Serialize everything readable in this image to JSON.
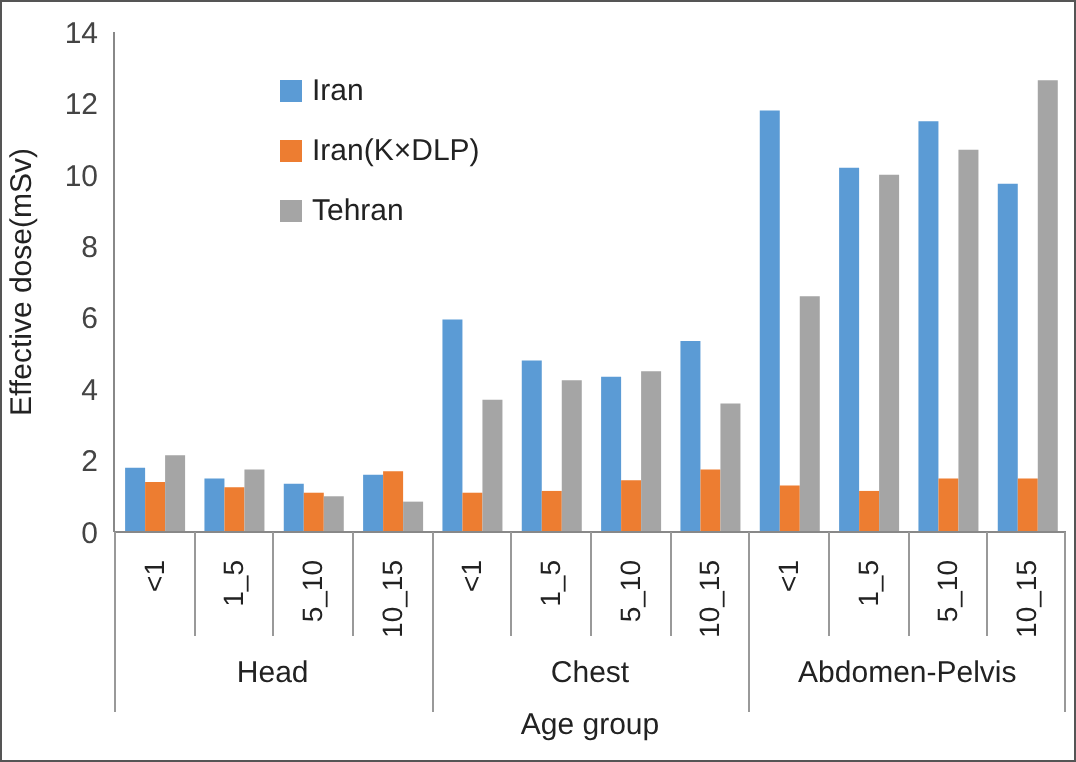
{
  "chart_data": {
    "type": "bar",
    "xlabel": "Age group",
    "ylabel": "Effective dose(mSv)",
    "categories": [
      "<1",
      "1_5",
      "5_10",
      "10_15",
      "<1",
      "1_5",
      "5_10",
      "10_15",
      "<1",
      "1_5",
      "5_10",
      "10_15"
    ],
    "series": [
      {
        "name": "Iran",
        "color": "#5b9bd5",
        "values": [
          1.8,
          1.5,
          1.35,
          1.6,
          5.95,
          4.8,
          4.35,
          5.35,
          11.8,
          10.2,
          11.5,
          9.75
        ]
      },
      {
        "name": "Iran(K×DLP)",
        "color": "#ed7d31",
        "values": [
          1.4,
          1.25,
          1.1,
          1.7,
          1.1,
          1.15,
          1.45,
          1.75,
          1.3,
          1.15,
          1.5,
          1.5
        ]
      },
      {
        "name": "Tehran",
        "color": "#a5a5a5",
        "values": [
          2.15,
          1.75,
          1.0,
          0.85,
          3.7,
          4.25,
          4.5,
          3.6,
          6.6,
          10.0,
          10.7,
          12.65
        ]
      }
    ],
    "annotations": [
      "Head",
      "Chest",
      "Abdomen-Pelvis"
    ],
    "ylim": [
      0,
      14
    ],
    "yticks": [
      0,
      2,
      4,
      6,
      8,
      10,
      12,
      14
    ],
    "grid": false,
    "legend": "top left"
  }
}
